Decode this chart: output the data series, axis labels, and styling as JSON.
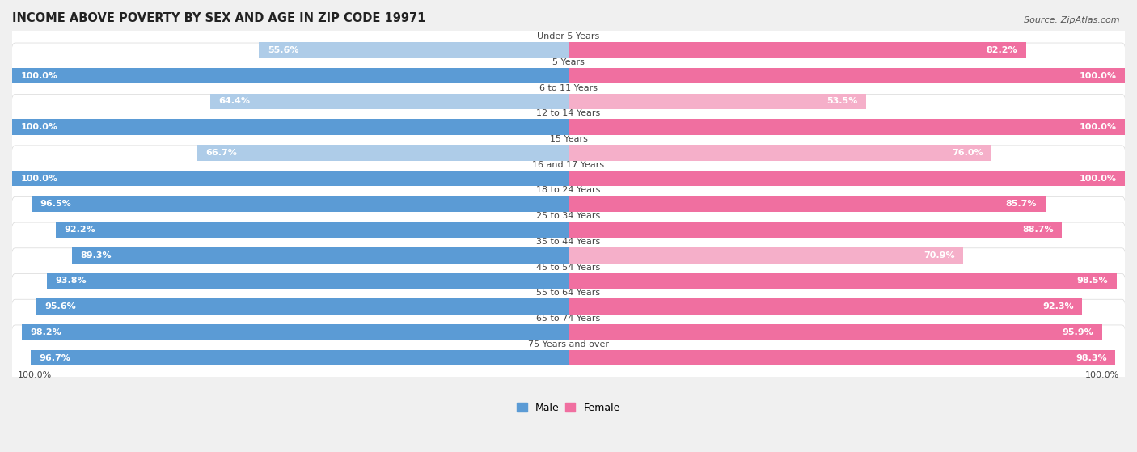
{
  "title": "INCOME ABOVE POVERTY BY SEX AND AGE IN ZIP CODE 19971",
  "source": "Source: ZipAtlas.com",
  "categories": [
    "Under 5 Years",
    "5 Years",
    "6 to 11 Years",
    "12 to 14 Years",
    "15 Years",
    "16 and 17 Years",
    "18 to 24 Years",
    "25 to 34 Years",
    "35 to 44 Years",
    "45 to 54 Years",
    "55 to 64 Years",
    "65 to 74 Years",
    "75 Years and over"
  ],
  "male_values": [
    55.6,
    100.0,
    64.4,
    100.0,
    66.7,
    100.0,
    96.5,
    92.2,
    89.3,
    93.8,
    95.6,
    98.2,
    96.7
  ],
  "female_values": [
    82.2,
    100.0,
    53.5,
    100.0,
    76.0,
    100.0,
    85.7,
    88.7,
    70.9,
    98.5,
    92.3,
    95.9,
    98.3
  ],
  "male_color_dark": "#5b9bd5",
  "male_color_light": "#aecce8",
  "female_color_dark": "#f06fa0",
  "female_color_light": "#f5afc9",
  "row_bg": "#ffffff",
  "row_border": "#d8d8d8",
  "fig_bg": "#f0f0f0",
  "legend_male": "Male",
  "legend_female": "Female",
  "bottom_left_label": "100.0%",
  "bottom_right_label": "100.0%",
  "bar_height": 0.62,
  "title_fontsize": 10.5,
  "label_fontsize": 8.0,
  "category_fontsize": 8.0,
  "source_fontsize": 8.0,
  "legend_fontsize": 9.0,
  "max_val": 100.0,
  "dark_threshold": 80.0
}
